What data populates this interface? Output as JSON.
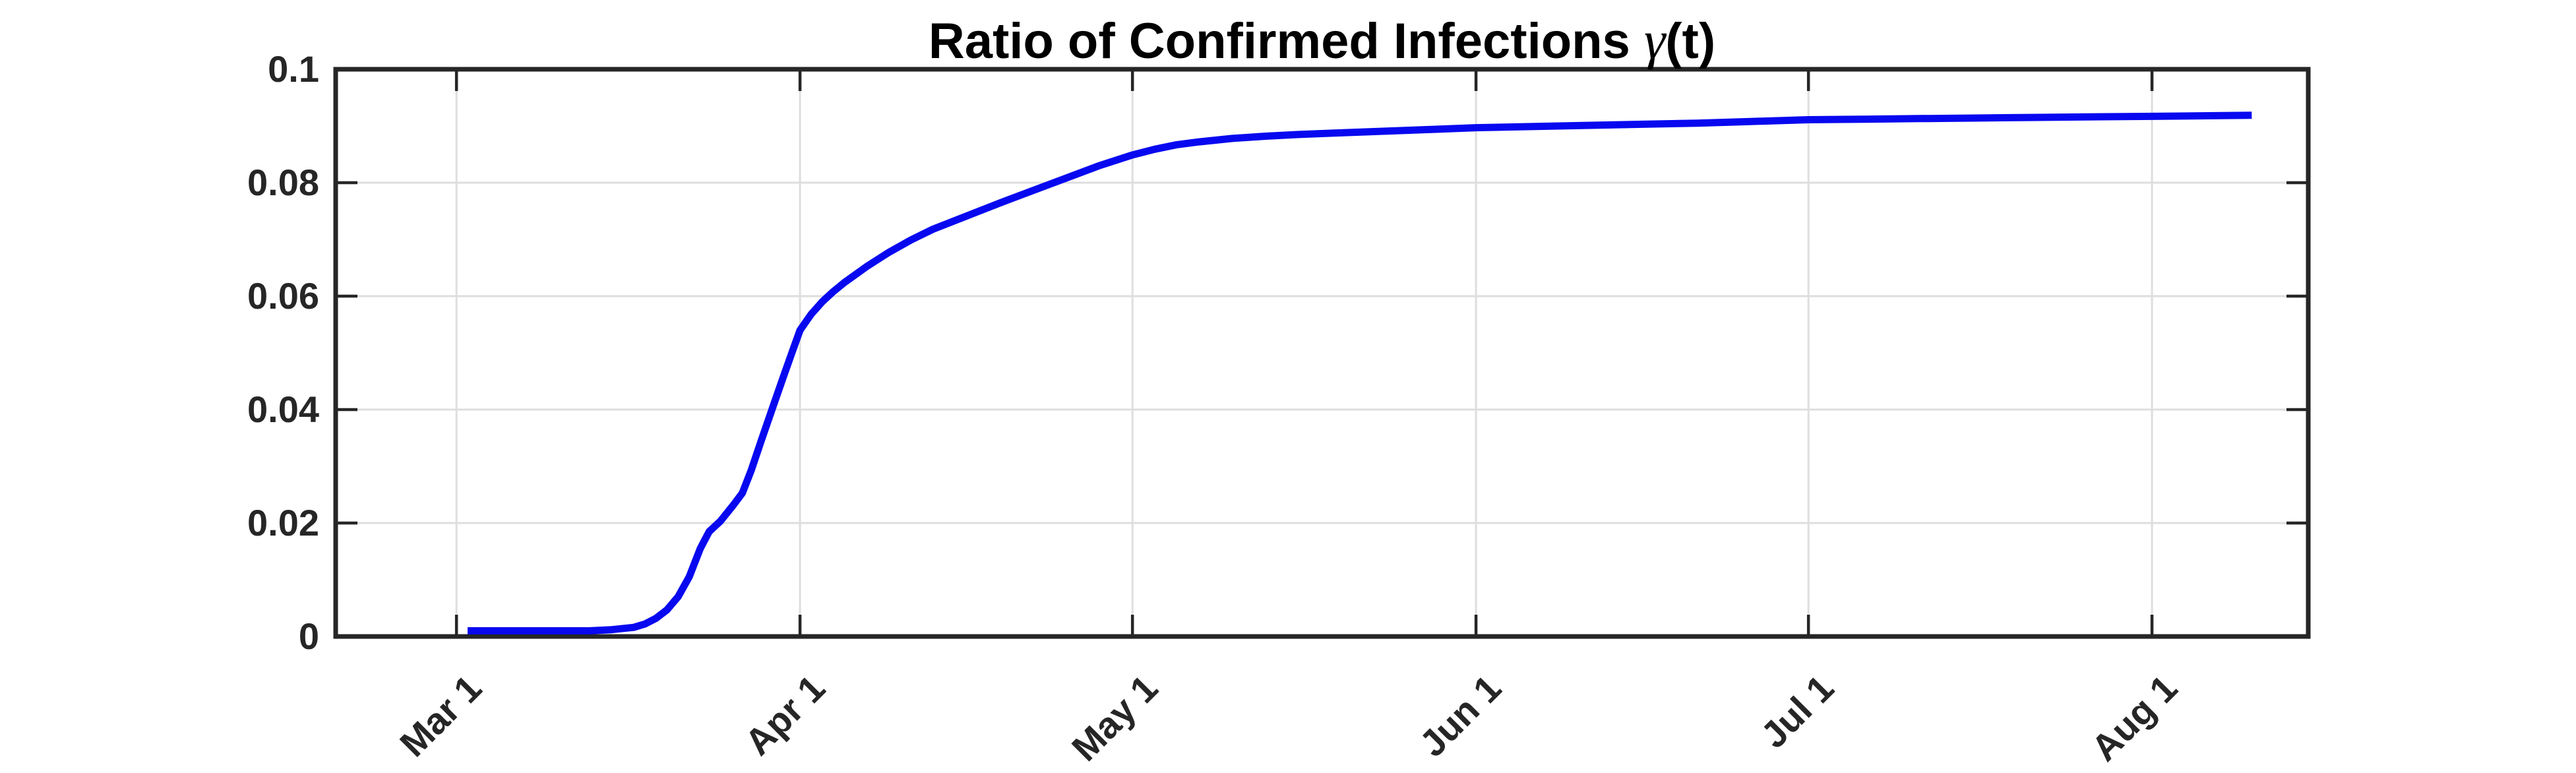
{
  "chart_data": {
    "type": "line",
    "title": "Ratio of Confirmed Infections γ(t)",
    "title_prefix": "Ratio of Confirmed Infections ",
    "title_gamma": "γ",
    "title_suffix": "(t)",
    "x_tick_labels": [
      "Mar 1",
      "Apr 1",
      "May 1",
      "Jun 1",
      "Jul 1",
      "Aug 1"
    ],
    "x_tick_days": [
      0,
      31,
      61,
      92,
      122,
      153
    ],
    "x_range_days": [
      -10.9,
      167.1
    ],
    "y_ticks": [
      0,
      0.02,
      0.04,
      0.06,
      0.08,
      0.1
    ],
    "y_tick_labels": [
      "0",
      "0.02",
      "0.04",
      "0.06",
      "0.08",
      "0.1"
    ],
    "ylim": [
      0,
      0.1
    ],
    "grid": true,
    "legend": "none",
    "line_color": "#0808F0",
    "axis_color": "#262626",
    "grid_color": "#DEDEDE",
    "line_width": 11,
    "series": [
      {
        "points": [
          [
            1,
            0.001
          ],
          [
            5,
            0.001
          ],
          [
            9,
            0.001
          ],
          [
            12,
            0.001
          ],
          [
            14,
            0.0012
          ],
          [
            16,
            0.0016
          ],
          [
            17,
            0.0022
          ],
          [
            18,
            0.0032
          ],
          [
            19,
            0.0047
          ],
          [
            20,
            0.007
          ],
          [
            21,
            0.0105
          ],
          [
            22,
            0.0155
          ],
          [
            22.8,
            0.0185
          ],
          [
            23.8,
            0.0203
          ],
          [
            25,
            0.0232
          ],
          [
            25.8,
            0.0253
          ],
          [
            26.6,
            0.0293
          ],
          [
            27.5,
            0.0345
          ],
          [
            28.5,
            0.0402
          ],
          [
            29.5,
            0.0458
          ],
          [
            30.3,
            0.0502
          ],
          [
            31,
            0.054
          ],
          [
            32,
            0.0568
          ],
          [
            33,
            0.059
          ],
          [
            34,
            0.0608
          ],
          [
            35,
            0.0624
          ],
          [
            37,
            0.0652
          ],
          [
            39,
            0.0677
          ],
          [
            41,
            0.0699
          ],
          [
            43,
            0.0718
          ],
          [
            46,
            0.0741
          ],
          [
            49,
            0.0764
          ],
          [
            52,
            0.0786
          ],
          [
            55,
            0.0808
          ],
          [
            58,
            0.083
          ],
          [
            61,
            0.0849
          ],
          [
            63,
            0.0859
          ],
          [
            65,
            0.0867
          ],
          [
            67,
            0.0872
          ],
          [
            70,
            0.0878
          ],
          [
            73,
            0.0882
          ],
          [
            76,
            0.0885
          ],
          [
            80,
            0.0888
          ],
          [
            84,
            0.0891
          ],
          [
            88,
            0.0894
          ],
          [
            92,
            0.0897
          ],
          [
            97,
            0.0899
          ],
          [
            102,
            0.0901
          ],
          [
            107,
            0.0903
          ],
          [
            112,
            0.0905
          ],
          [
            117,
            0.0908
          ],
          [
            122,
            0.0911
          ],
          [
            127,
            0.0912
          ],
          [
            132,
            0.0913
          ],
          [
            137,
            0.0914
          ],
          [
            142,
            0.0915
          ],
          [
            147,
            0.0916
          ],
          [
            153,
            0.0917
          ],
          [
            158,
            0.0918
          ],
          [
            162,
            0.0919
          ]
        ]
      }
    ]
  }
}
